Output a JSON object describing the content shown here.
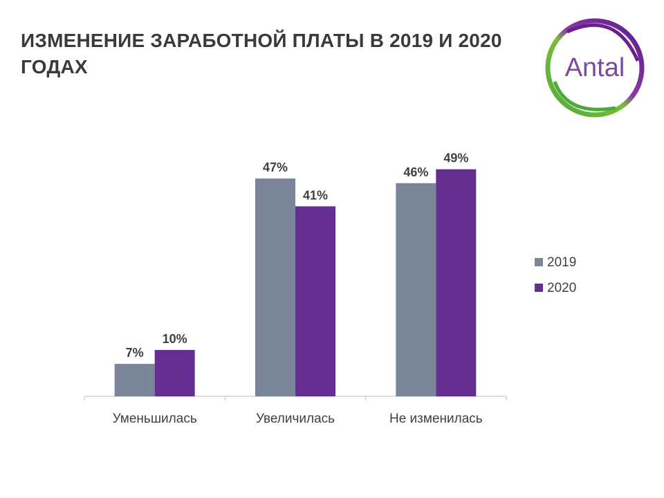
{
  "title": "ИЗМЕНЕНИЕ ЗАРАБОТНОЙ ПЛАТЫ В 2019 И 2020 ГОДАХ",
  "logo": {
    "text": "Antal",
    "text_color": "#7a4a9c",
    "ring_purple": "#6a1f8f",
    "ring_green": "#4caa3c"
  },
  "chart_data": {
    "type": "bar",
    "categories": [
      "Уменьшилась",
      "Увеличилась",
      "Не изменилась"
    ],
    "series": [
      {
        "name": "2019",
        "values": [
          7,
          47,
          46
        ],
        "labels": [
          "7%",
          "47%",
          "46%"
        ],
        "color": "#7a8599"
      },
      {
        "name": "2020",
        "values": [
          10,
          41,
          49
        ],
        "labels": [
          "10%",
          "41%",
          "49%"
        ],
        "color": "#642f91"
      }
    ],
    "ylim": [
      0,
      50
    ],
    "grid": false,
    "legend_position": "right"
  }
}
